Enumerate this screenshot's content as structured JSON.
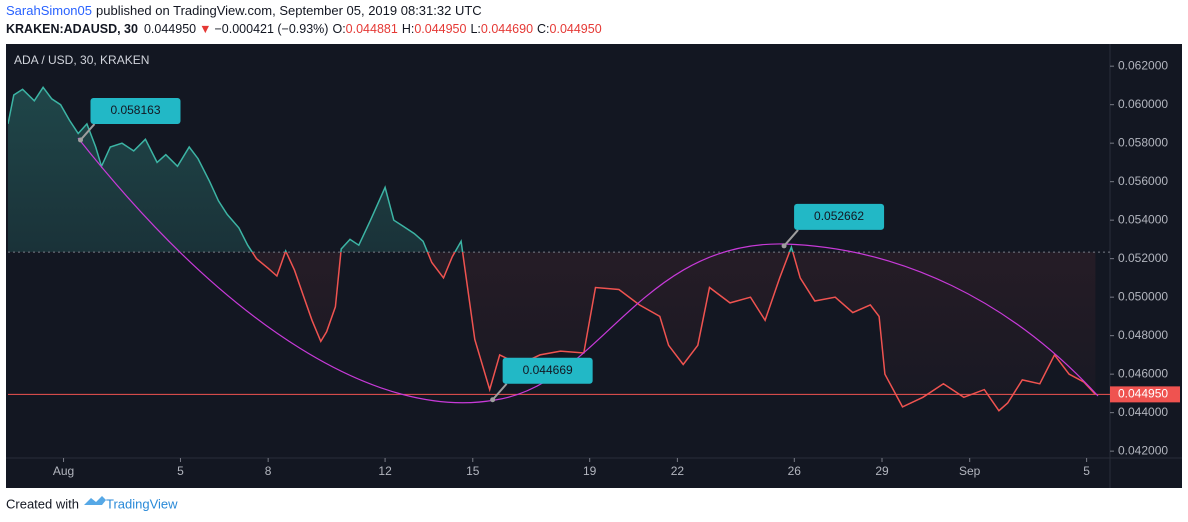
{
  "header": {
    "author": "SarahSimon05",
    "published": "published on TradingView.com, September 05, 2019 08:31:32 UTC",
    "symbol": "KRAKEN:ADAUSD, 30",
    "last": "0.044950",
    "arrow": "▼",
    "change": "−0.000421 (−0.93%)",
    "o_label": "O:",
    "o": "0.044881",
    "h_label": "H:",
    "h": "0.044950",
    "l_label": "L:",
    "l": "0.044690",
    "c_label": "C:",
    "c": "0.044950"
  },
  "footer": {
    "created": "Created with",
    "brand": "TradingView"
  },
  "chart_data": {
    "type": "baseline",
    "title": "ADA / USD, 30, KRAKEN",
    "x": [
      -0.9,
      -0.7,
      -0.4,
      0,
      0.3,
      0.6,
      0.9,
      1.2,
      1.5,
      1.8,
      2.1,
      2.3,
      2.6,
      3.0,
      3.4,
      3.8,
      4.2,
      4.5,
      4.9,
      5.3,
      5.6,
      6.0,
      6.3,
      6.6,
      7.0,
      7.3,
      7.6,
      8.0,
      8.3,
      8.6,
      8.9,
      9.2,
      9.5,
      9.8,
      10.0,
      10.3,
      10.5,
      10.8,
      11.1,
      11.5,
      12.0,
      12.3,
      12.6,
      13.0,
      13.3,
      13.6,
      14.0,
      14.3,
      14.6,
      15.07,
      15.58,
      15.92,
      16.6,
      17.3,
      18.0,
      18.8,
      19.2,
      20.0,
      20.7,
      21.4,
      21.7,
      22.2,
      22.7,
      23.1,
      23.8,
      24.5,
      25.0,
      25.5,
      25.9,
      26.2,
      26.7,
      27.4,
      28.0,
      28.6,
      28.9,
      29.1,
      29.7,
      30.4,
      31.1,
      31.8,
      32.5,
      33.0,
      33.3,
      33.8,
      34.4,
      34.9,
      35.4,
      35.9,
      36.3
    ],
    "series": [
      {
        "name": "ADA / USD",
        "color_above": "#3cb4a4",
        "color_below": "#ef5350",
        "values": [
          0.059,
          0.0605,
          0.0608,
          0.0602,
          0.0609,
          0.0603,
          0.06,
          0.0592,
          0.0585,
          0.059,
          0.0578,
          0.0568,
          0.0578,
          0.058,
          0.0576,
          0.0582,
          0.057,
          0.0574,
          0.0568,
          0.0578,
          0.0572,
          0.056,
          0.055,
          0.0543,
          0.0536,
          0.0527,
          0.052,
          0.0515,
          0.0511,
          0.0524,
          0.0514,
          0.0501,
          0.0488,
          0.0477,
          0.0482,
          0.0495,
          0.0525,
          0.053,
          0.0527,
          0.054,
          0.0557,
          0.054,
          0.0537,
          0.0533,
          0.0529,
          0.0518,
          0.051,
          0.0521,
          0.0529,
          0.0478,
          0.0452,
          0.047,
          0.0465,
          0.047,
          0.0472,
          0.0471,
          0.0505,
          0.0504,
          0.0496,
          0.049,
          0.0475,
          0.0465,
          0.0475,
          0.0505,
          0.0497,
          0.05,
          0.0488,
          0.051,
          0.0526,
          0.051,
          0.0498,
          0.05,
          0.0492,
          0.0496,
          0.049,
          0.046,
          0.0443,
          0.0448,
          0.0455,
          0.0448,
          0.0452,
          0.0441,
          0.0445,
          0.0457,
          0.0455,
          0.047,
          0.046,
          0.0456,
          0.04495
        ]
      }
    ],
    "baseline": 0.05234,
    "last_price": {
      "value": 0.04495,
      "label": "0.044950"
    },
    "annotations": [
      {
        "x": 1.58,
        "y": 0.058163
      },
      {
        "x": 15.68,
        "y": 0.044669
      },
      {
        "x": 25.65,
        "y": 0.052662
      }
    ],
    "xlim": [
      -0.9,
      36.8
    ],
    "xticks": [
      {
        "value": 1,
        "label": "Aug"
      },
      5,
      8,
      12,
      15,
      19,
      22,
      26,
      29,
      {
        "value": 32,
        "label": "Sep"
      },
      {
        "value": 36,
        "label": "5"
      }
    ],
    "ylim": [
      0.0418,
      0.0631
    ],
    "yticks": [
      {
        "value": 0.042,
        "label": "0.042000"
      },
      {
        "value": 0.044,
        "label": "0.044000"
      },
      {
        "value": 0.046,
        "label": "0.046000"
      },
      {
        "value": 0.048,
        "label": "0.048000"
      },
      {
        "value": 0.05,
        "label": "0.050000"
      },
      {
        "value": 0.052,
        "label": "0.052000"
      },
      {
        "value": 0.054,
        "label": "0.054000"
      },
      {
        "value": 0.056,
        "label": "0.056000"
      },
      {
        "value": 0.058,
        "label": "0.058000"
      },
      {
        "value": 0.06,
        "label": "0.060000"
      },
      {
        "value": 0.062,
        "label": "0.062000"
      }
    ]
  }
}
